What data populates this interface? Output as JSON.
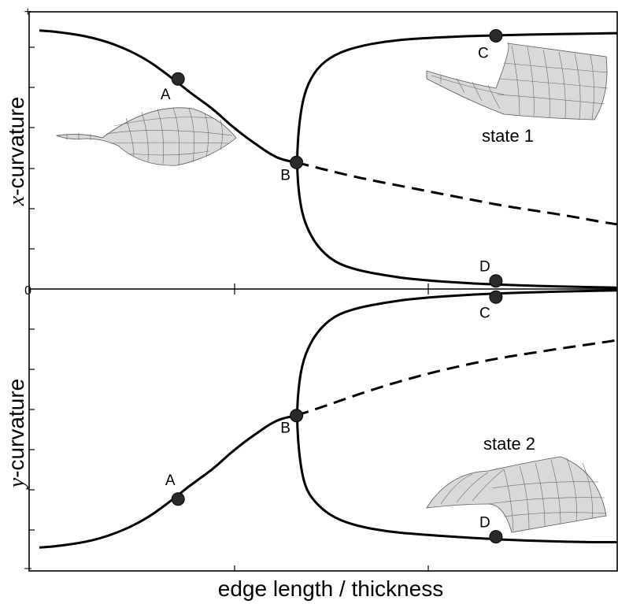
{
  "chart_data": [
    {
      "type": "line",
      "panel": "top",
      "ylabel_var": "x",
      "ylabel_rest": "-curvature",
      "ytick_top": "+",
      "ytick_bottom": "0",
      "xlim": [
        0,
        1
      ],
      "ylim": [
        0,
        1
      ],
      "series": [
        {
          "style": "solid",
          "x": [
            0.0,
            0.03,
            0.08,
            0.13,
            0.18,
            0.22,
            0.26,
            0.3,
            0.33,
            0.36,
            0.38,
            0.4,
            0.42,
            0.445
          ],
          "y": [
            0.96,
            0.955,
            0.94,
            0.91,
            0.86,
            0.8,
            0.73,
            0.67,
            0.61,
            0.56,
            0.53,
            0.5,
            0.48,
            0.47
          ]
        },
        {
          "style": "dashed",
          "x": [
            0.445,
            0.5,
            0.56,
            0.62,
            0.68,
            0.74,
            0.8,
            0.86,
            0.92,
            0.97,
            1.0
          ],
          "y": [
            0.47,
            0.44,
            0.41,
            0.385,
            0.36,
            0.335,
            0.31,
            0.29,
            0.27,
            0.25,
            0.24
          ]
        },
        {
          "style": "solid",
          "x": [
            1.0,
            0.95,
            0.85,
            0.75,
            0.65,
            0.6,
            0.55,
            0.51,
            0.48,
            0.46,
            0.45,
            0.445,
            0.45,
            0.46,
            0.48,
            0.51,
            0.55,
            0.6,
            0.65,
            0.75,
            0.85,
            0.95,
            1.0
          ],
          "y": [
            0.95,
            0.948,
            0.945,
            0.94,
            0.93,
            0.92,
            0.9,
            0.87,
            0.82,
            0.74,
            0.63,
            0.47,
            0.33,
            0.24,
            0.16,
            0.1,
            0.07,
            0.05,
            0.035,
            0.02,
            0.012,
            0.007,
            0.005
          ]
        }
      ],
      "points": [
        {
          "label": "A",
          "x": 0.24,
          "y": 0.78
        },
        {
          "label": "B",
          "x": 0.445,
          "y": 0.47
        },
        {
          "label": "C",
          "x": 0.79,
          "y": 0.94
        },
        {
          "label": "D",
          "x": 0.79,
          "y": 0.03
        }
      ],
      "annotation": "state 1"
    },
    {
      "type": "line",
      "panel": "bottom",
      "ylabel_var": "y",
      "ylabel_rest": "-curvature",
      "ytick_bottom": "–",
      "xlim": [
        0,
        1
      ],
      "ylim": [
        -1,
        0
      ],
      "series": [
        {
          "style": "solid",
          "x": [
            0.0,
            0.03,
            0.08,
            0.13,
            0.18,
            0.22,
            0.26,
            0.3,
            0.33,
            0.36,
            0.38,
            0.4,
            0.42,
            0.445
          ],
          "y": [
            -0.96,
            -0.955,
            -0.94,
            -0.91,
            -0.86,
            -0.8,
            -0.73,
            -0.67,
            -0.61,
            -0.56,
            -0.53,
            -0.5,
            -0.48,
            -0.47
          ]
        },
        {
          "style": "dashed",
          "x": [
            0.445,
            0.5,
            0.56,
            0.62,
            0.68,
            0.74,
            0.8,
            0.86,
            0.92,
            0.97,
            1.0
          ],
          "y": [
            -0.47,
            -0.43,
            -0.385,
            -0.345,
            -0.31,
            -0.28,
            -0.255,
            -0.235,
            -0.215,
            -0.2,
            -0.19
          ]
        },
        {
          "style": "solid",
          "x": [
            1.0,
            0.95,
            0.85,
            0.75,
            0.65,
            0.6,
            0.55,
            0.51,
            0.48,
            0.46,
            0.45,
            0.445,
            0.45,
            0.46,
            0.48,
            0.51,
            0.55,
            0.6,
            0.65,
            0.75,
            0.85,
            0.95,
            1.0
          ],
          "y": [
            -0.005,
            -0.007,
            -0.012,
            -0.02,
            -0.035,
            -0.05,
            -0.07,
            -0.1,
            -0.16,
            -0.24,
            -0.33,
            -0.47,
            -0.63,
            -0.74,
            -0.8,
            -0.85,
            -0.88,
            -0.9,
            -0.91,
            -0.925,
            -0.935,
            -0.94,
            -0.94
          ]
        },
        {
          "style": "none",
          "x": [],
          "y": []
        }
      ],
      "points": [
        {
          "label": "A",
          "x": 0.24,
          "y": -0.78
        },
        {
          "label": "B",
          "x": 0.445,
          "y": -0.47
        },
        {
          "label": "C",
          "x": 0.79,
          "y": -0.03
        },
        {
          "label": "D",
          "x": 0.79,
          "y": -0.92
        }
      ],
      "annotation": "state 2"
    }
  ],
  "shared_xlabel": "edge length / thickness",
  "colors": {
    "line": "#000000",
    "point": "#2a2a2a",
    "mesh_fill": "#d9d9d9",
    "mesh_line": "#666666"
  },
  "icons": [
    "saddle-surface-icon",
    "cylindrical-trough-surface-icon",
    "cylindrical-arch-surface-icon"
  ]
}
